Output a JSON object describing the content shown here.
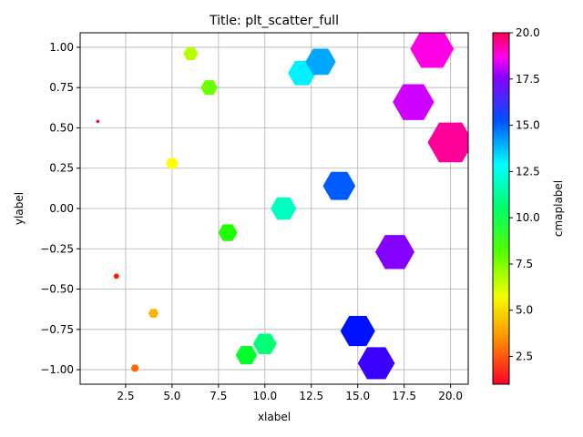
{
  "chart_data": {
    "type": "scatter",
    "title": "Title: plt_scatter_full",
    "xlabel": "xlabel",
    "ylabel": "ylabel",
    "xlim": [
      0.05,
      20.95
    ],
    "ylim": [
      -1.09,
      1.09
    ],
    "xticks": [
      2.5,
      5.0,
      7.5,
      10.0,
      12.5,
      15.0,
      17.5,
      20.0
    ],
    "xtick_labels": [
      "2.5",
      "5.0",
      "7.5",
      "10.0",
      "12.5",
      "15.0",
      "17.5",
      "20.0"
    ],
    "yticks": [
      -1.0,
      -0.75,
      -0.5,
      -0.25,
      0.0,
      0.25,
      0.5,
      0.75,
      1.0
    ],
    "ytick_labels": [
      "−1.00",
      "−0.75",
      "−0.50",
      "−0.25",
      "0.00",
      "0.25",
      "0.50",
      "0.75",
      "1.00"
    ],
    "grid": true,
    "marker": "hexagon",
    "colormap": "gist_rainbow",
    "colorbar": {
      "label": "cmaplabel",
      "range": [
        1,
        20
      ],
      "ticks": [
        2.5,
        5.0,
        7.5,
        10.0,
        12.5,
        15.0,
        17.5,
        20.0
      ],
      "tick_labels": [
        "2.5",
        "5.0",
        "7.5",
        "10.0",
        "12.5",
        "15.0",
        "17.5",
        "20.0"
      ]
    },
    "points": [
      {
        "x": 1,
        "y": 0.54,
        "size": 1,
        "color_value": 1
      },
      {
        "x": 2,
        "y": -0.42,
        "size": 2,
        "color_value": 2
      },
      {
        "x": 3,
        "y": -0.99,
        "size": 3,
        "color_value": 3
      },
      {
        "x": 4,
        "y": -0.65,
        "size": 4,
        "color_value": 4
      },
      {
        "x": 5,
        "y": 0.28,
        "size": 5,
        "color_value": 5
      },
      {
        "x": 6,
        "y": 0.96,
        "size": 6,
        "color_value": 6
      },
      {
        "x": 7,
        "y": 0.75,
        "size": 7,
        "color_value": 7
      },
      {
        "x": 8,
        "y": -0.15,
        "size": 8,
        "color_value": 8
      },
      {
        "x": 9,
        "y": -0.91,
        "size": 9,
        "color_value": 9
      },
      {
        "x": 10,
        "y": -0.84,
        "size": 10,
        "color_value": 10
      },
      {
        "x": 11,
        "y": 0.0,
        "size": 11,
        "color_value": 11
      },
      {
        "x": 12,
        "y": 0.84,
        "size": 12,
        "color_value": 12
      },
      {
        "x": 13,
        "y": 0.91,
        "size": 13,
        "color_value": 13
      },
      {
        "x": 14,
        "y": 0.14,
        "size": 14,
        "color_value": 14
      },
      {
        "x": 15,
        "y": -0.76,
        "size": 15,
        "color_value": 15
      },
      {
        "x": 16,
        "y": -0.96,
        "size": 16,
        "color_value": 16
      },
      {
        "x": 17,
        "y": -0.27,
        "size": 17,
        "color_value": 17
      },
      {
        "x": 18,
        "y": 0.66,
        "size": 18,
        "color_value": 18
      },
      {
        "x": 19,
        "y": 0.99,
        "size": 19,
        "color_value": 19
      },
      {
        "x": 20,
        "y": 0.41,
        "size": 20,
        "color_value": 20
      }
    ]
  }
}
